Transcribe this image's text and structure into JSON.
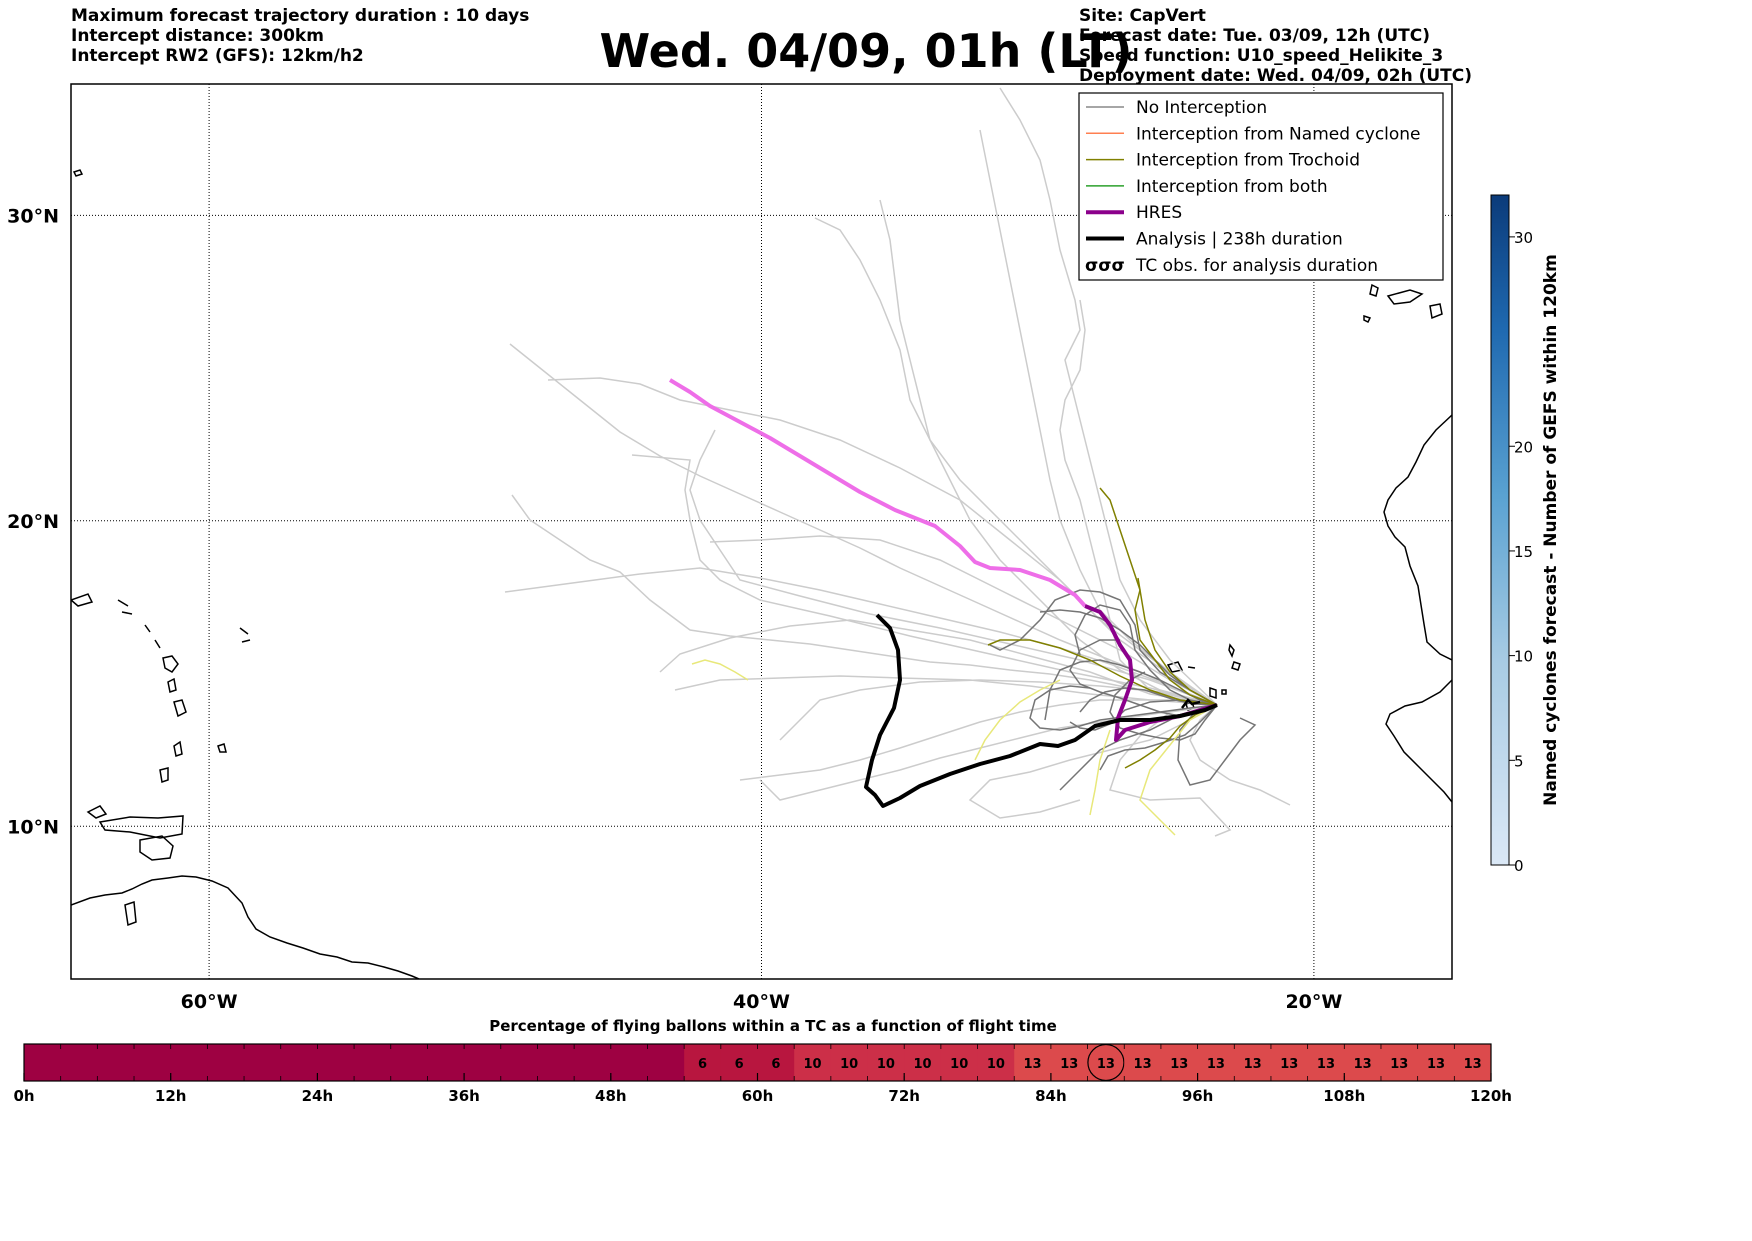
{
  "header": {
    "left_lines": [
      "Maximum forecast trajectory duration : 10 days",
      "Intercept distance: 300km",
      "Intercept RW2 (GFS):  12km/h2"
    ],
    "title": "Wed. 04/09, 01h (LT)",
    "right_lines": [
      "Site: CapVert",
      "Forecast date: Tue. 03/09, 12h (UTC)",
      "Speed function: U10_speed_Helikite_3",
      "Deployment date: Wed. 04/09, 02h (UTC)"
    ]
  },
  "map": {
    "lat_labels": [
      "30°N",
      "20°N",
      "10°N"
    ],
    "lon_labels": [
      "60°W",
      "40°W",
      "20°W"
    ],
    "lon_range": [
      -65,
      -15
    ],
    "lat_range": [
      5,
      34.3
    ],
    "lat_grid": [
      30,
      20,
      10
    ],
    "lon_grid": [
      -60,
      -40,
      -20
    ]
  },
  "legend": {
    "items": [
      {
        "label": "No Interception",
        "color": "#888888",
        "style": "line"
      },
      {
        "label": "Interception from Named cyclone",
        "color": "#ff7f50",
        "style": "line"
      },
      {
        "label": "Interception from Trochoid",
        "color": "#808000",
        "style": "line"
      },
      {
        "label": "Interception from both",
        "color": "#2ca02c",
        "style": "line"
      },
      {
        "label": "HRES",
        "color": "#8b008b",
        "style": "thick"
      },
      {
        "label": "Analysis | 238h duration",
        "color": "#000000",
        "style": "thick"
      },
      {
        "label": "TC obs. for analysis duration",
        "color": "#000000",
        "style": "tc"
      }
    ]
  },
  "colorbar_right": {
    "label": "Named cyclones forecast - Number of GEFS within 120km",
    "ticks": [
      0,
      5,
      10,
      15,
      20,
      30
    ],
    "range": [
      0,
      32
    ]
  },
  "timeline": {
    "title": "Percentage of flying ballons within a TC as a function of flight time",
    "tick_labels": [
      "0h",
      "12h",
      "24h",
      "36h",
      "48h",
      "60h",
      "72h",
      "84h",
      "96h",
      "108h",
      "120h"
    ],
    "cell_values": [
      "6",
      "6",
      "6",
      "10",
      "10",
      "10",
      "10",
      "10",
      "10",
      "13",
      "13",
      "13",
      "13",
      "13",
      "13",
      "13",
      "13",
      "13",
      "13",
      "13",
      "13",
      "13"
    ],
    "circled_index": 11,
    "base_color": "#9e0142"
  }
}
